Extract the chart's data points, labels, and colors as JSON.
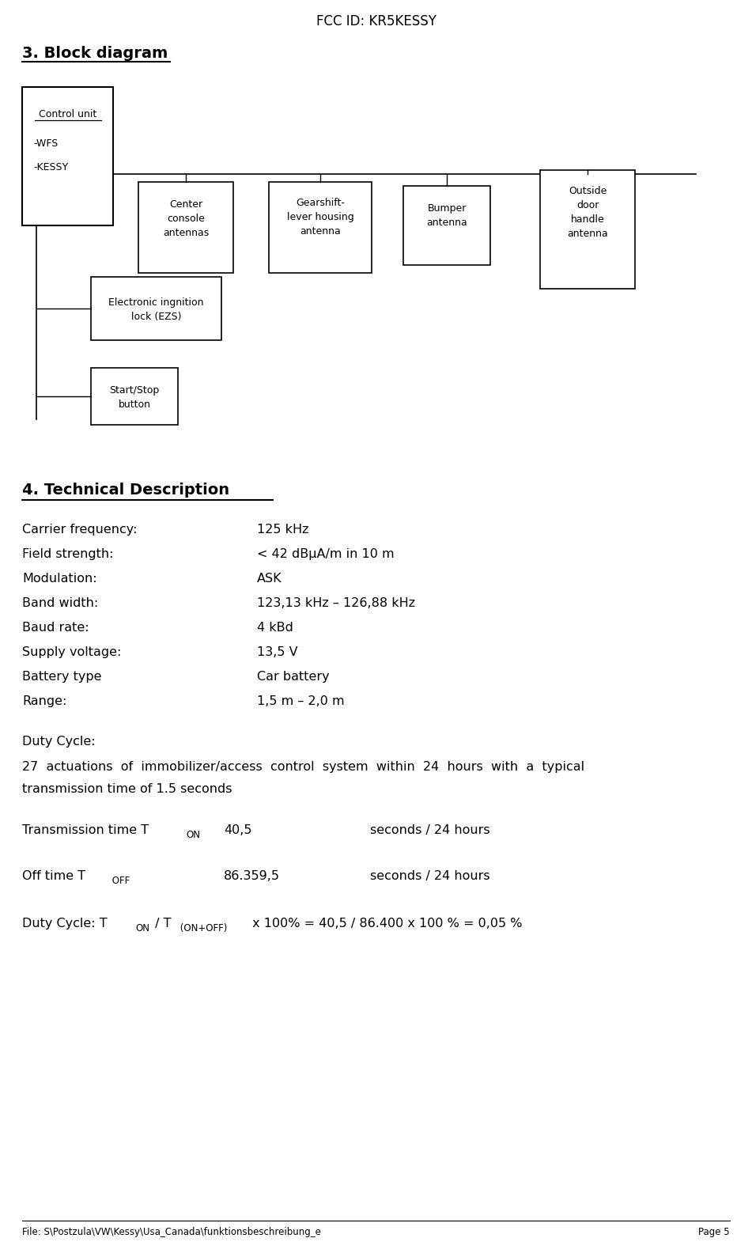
{
  "title": "FCC ID: KR5KESSY",
  "section3_title": "3. Block diagram",
  "section4_title": "4. Technical Description",
  "footer_left": "File: S\\Postzula\\VW\\Kessy\\Usa_Canada\\funktionsbeschreibung_e",
  "footer_right": "Page 5",
  "tech_params": [
    [
      "Carrier frequency:",
      "125 kHz"
    ],
    [
      "Field strength:",
      "< 42 dBμA/m in 10 m"
    ],
    [
      "Modulation:",
      "ASK"
    ],
    [
      "Band width:",
      "123,13 kHz – 126,88 kHz"
    ],
    [
      "Baud rate:",
      "4 kBd"
    ],
    [
      "Supply voltage:",
      "13,5 V"
    ],
    [
      "Battery type",
      "Car battery"
    ],
    [
      "Range:",
      "1,5 m – 2,0 m"
    ]
  ],
  "bg_color": "#ffffff"
}
